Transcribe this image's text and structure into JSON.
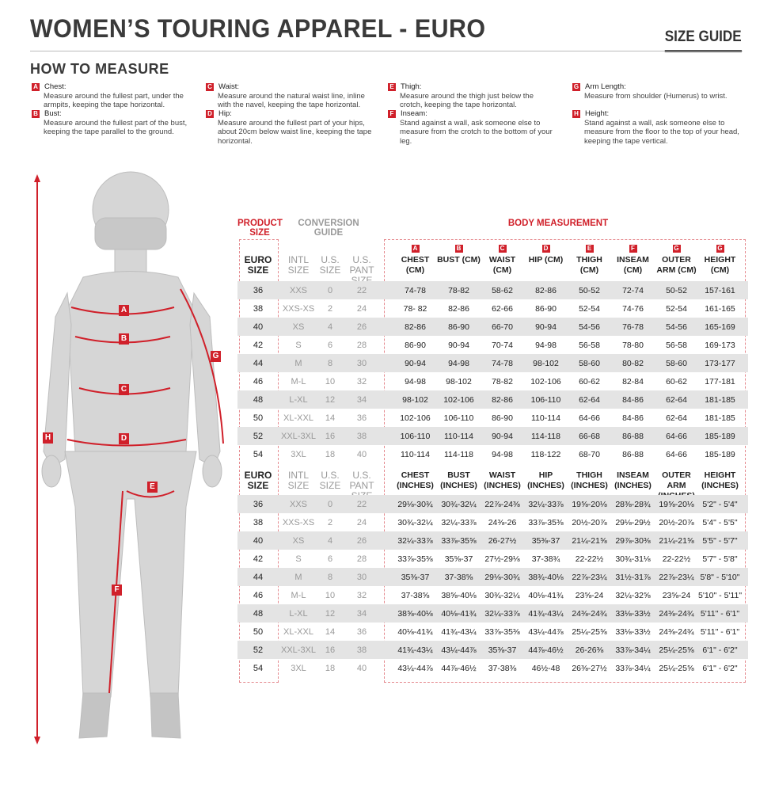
{
  "header": {
    "title": "WOMEN’S TOURING APPAREL - EURO",
    "size_guide": "SIZE GUIDE",
    "how_to_measure": "HOW TO MEASURE"
  },
  "instructions": [
    {
      "letter": "A",
      "title": "Chest:",
      "text": "Measure around the fullest part, under the armpits, keeping the tape horizontal."
    },
    {
      "letter": "B",
      "title": "Bust:",
      "text": "Measure around the fullest part of the bust, keeping the tape parallel to the ground."
    },
    {
      "letter": "C",
      "title": "Waist:",
      "text": "Measure around the natural waist line, inline with the navel, keeping the tape horizontal."
    },
    {
      "letter": "D",
      "title": "Hip:",
      "text": "Measure around the fullest part of your hips, about 20cm below waist line, keeping the tape horizontal."
    },
    {
      "letter": "E",
      "title": "Thigh:",
      "text": "Measure around the thigh just below the crotch, keeping the tape horizontal."
    },
    {
      "letter": "F",
      "title": "Inseam:",
      "text": "Stand against a wall, ask someone else to measure from the crotch to the bottom of your leg."
    },
    {
      "letter": "G",
      "title": "Arm Length:",
      "text": "Measure from shoulder (Humerus) to wrist."
    },
    {
      "letter": "H",
      "title": "Height:",
      "text": "Stand against a wall, ask someone else to measure from the floor to the top of your head, keeping the tape vertical."
    }
  ],
  "figure_labels": [
    "A",
    "B",
    "C",
    "D",
    "E",
    "F",
    "G",
    "H"
  ],
  "colors": {
    "accent": "#d0202a",
    "stripe": "#e4e4e4"
  },
  "table": {
    "product_size": "PRODUCT SIZE",
    "conversion_guide": "CONVERSION GUIDE",
    "body_measurement": "BODY MEASUREMENT",
    "col_letters": [
      "A",
      "B",
      "C",
      "D",
      "E",
      "F",
      "G",
      "G"
    ],
    "size_headers": [
      "EURO SIZE",
      "INTL SIZE",
      "U.S. SIZE",
      "U.S. PANT SIZE"
    ],
    "cm_headers": [
      "CHEST (CM)",
      "BUST (CM)",
      "WAIST (CM)",
      "HIP (CM)",
      "THIGH (CM)",
      "INSEAM (CM)",
      "OUTER ARM (CM)",
      "HEIGHT (CM)"
    ],
    "in_headers": [
      "CHEST (INCHES)",
      "BUST (INCHES)",
      "WAIST (INCHES)",
      "HIP (INCHES)",
      "THIGH (INCHES)",
      "INSEAM (INCHES)",
      "OUTER ARM (INCHES)",
      "HEIGHT (INCHES)"
    ],
    "sizes": [
      [
        "36",
        "XXS",
        "0",
        "22"
      ],
      [
        "38",
        "XXS-XS",
        "2",
        "24"
      ],
      [
        "40",
        "XS",
        "4",
        "26"
      ],
      [
        "42",
        "S",
        "6",
        "28"
      ],
      [
        "44",
        "M",
        "8",
        "30"
      ],
      [
        "46",
        "M-L",
        "10",
        "32"
      ],
      [
        "48",
        "L-XL",
        "12",
        "34"
      ],
      [
        "50",
        "XL-XXL",
        "14",
        "36"
      ],
      [
        "52",
        "XXL-3XL",
        "16",
        "38"
      ],
      [
        "54",
        "3XL",
        "18",
        "40"
      ]
    ],
    "cm_rows": [
      [
        "74-78",
        "78-82",
        "58-62",
        "82-86",
        "50-52",
        "72-74",
        "50-52",
        "157-161"
      ],
      [
        "78- 82",
        "82-86",
        "62-66",
        "86-90",
        "52-54",
        "74-76",
        "52-54",
        "161-165"
      ],
      [
        "82-86",
        "86-90",
        "66-70",
        "90-94",
        "54-56",
        "76-78",
        "54-56",
        "165-169"
      ],
      [
        "86-90",
        "90-94",
        "70-74",
        "94-98",
        "56-58",
        "78-80",
        "56-58",
        "169-173"
      ],
      [
        "90-94",
        "94-98",
        "74-78",
        "98-102",
        "58-60",
        "80-82",
        "58-60",
        "173-177"
      ],
      [
        "94-98",
        "98-102",
        "78-82",
        "102-106",
        "60-62",
        "82-84",
        "60-62",
        "177-181"
      ],
      [
        "98-102",
        "102-106",
        "82-86",
        "106-110",
        "62-64",
        "84-86",
        "62-64",
        "181-185"
      ],
      [
        "102-106",
        "106-110",
        "86-90",
        "110-114",
        "64-66",
        "84-86",
        "62-64",
        "181-185"
      ],
      [
        "106-110",
        "110-114",
        "90-94",
        "114-118",
        "66-68",
        "86-88",
        "64-66",
        "185-189"
      ],
      [
        "110-114",
        "114-118",
        "94-98",
        "118-122",
        "68-70",
        "86-88",
        "64-66",
        "185-189"
      ]
    ],
    "in_rows": [
      [
        "29⅛-30¾",
        "30¾-32¼",
        "22⅞-24⅜",
        "32¼-33⅞",
        "19⅝-20⅛",
        "28⅜-28¾",
        "19⅝-20⅛",
        "5'2\" - 5'4\""
      ],
      [
        "30¾-32¼",
        "32¼-33⅞",
        "24⅜-26",
        "33⅞-35⅜",
        "20½-20⅞",
        "29⅛-29½",
        "20½-20⅞",
        "5'4\" - 5'5\""
      ],
      [
        "32¼-33⅞",
        "33⅞-35⅝",
        "26-27½",
        "35⅜-37",
        "21¼-21⅝",
        "29⅞-30⅜",
        "21¼-21⅝",
        "5'5\" - 5'7\""
      ],
      [
        "33⅞-35⅜",
        "35⅝-37",
        "27½-29⅛",
        "37-38¾",
        "22-22½",
        "30¾-31⅛",
        "22-22½",
        "5'7\" - 5'8\""
      ],
      [
        "35⅜-37",
        "37-38⅝",
        "29⅛-30¾",
        "38¾-40⅛",
        "22⅞-23¼",
        "31½-31⅞",
        "22⅞-23¼",
        "5'8\" - 5'10\""
      ],
      [
        "37-38⅝",
        "38⅝-40⅛",
        "30¾-32¼",
        "40⅛-41¾",
        "23⅝-24",
        "32¼-32⅝",
        "23⅝-24",
        "5'10\" - 5'11\""
      ],
      [
        "38⅝-40⅛",
        "40⅛-41¾",
        "32¼-33⅞",
        "41¾-43¼",
        "24⅜-24¾",
        "33⅛-33½",
        "24⅜-24¾",
        "5'11\" - 6'1\""
      ],
      [
        "40⅛-41¾",
        "41¾-43¼",
        "33⅞-35⅜",
        "43¼-44⅞",
        "25¼-25⅝",
        "33⅛-33½",
        "24⅜-24¾",
        "5'11\" - 6'1\""
      ],
      [
        "41¾-43¼",
        "43¼-44⅞",
        "35⅜-37",
        "44⅞-46½",
        "26-26⅜",
        "33⅞-34¼",
        "25¼-25⅝",
        "6'1\" - 6'2\""
      ],
      [
        "43¼-44⅞",
        "44⅞-46½",
        "37-38⅜",
        "46½-48",
        "26⅜-27½",
        "33⅞-34¼",
        "25¼-25⅝",
        "6'1\" - 6'2\""
      ]
    ]
  }
}
